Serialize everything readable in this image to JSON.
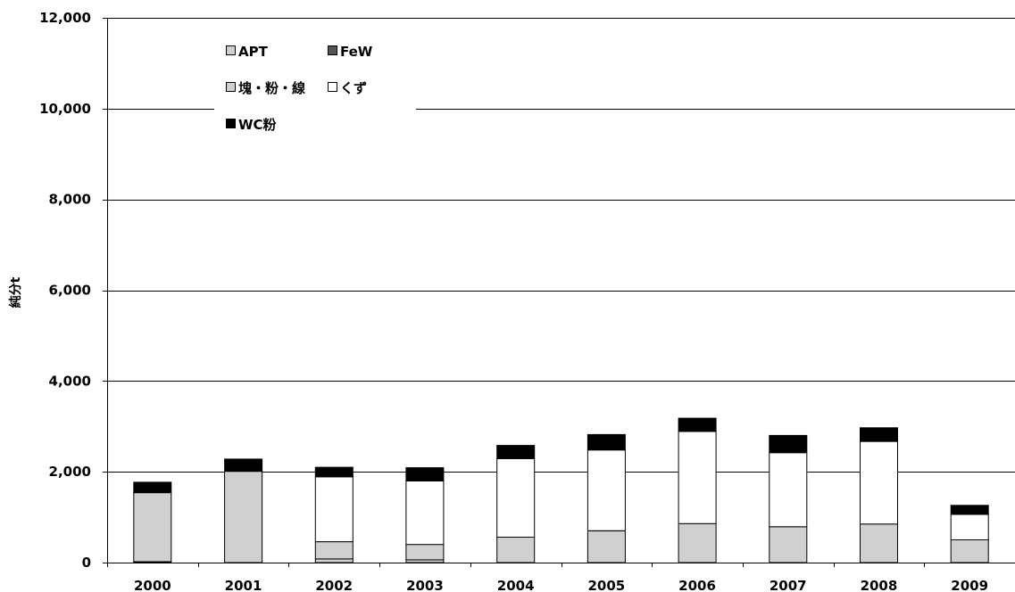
{
  "chart_data": {
    "type": "bar",
    "stacked": true,
    "ylabel": "純分t",
    "ylim": [
      0,
      12000
    ],
    "yticks": [
      0,
      2000,
      4000,
      6000,
      8000,
      10000,
      12000
    ],
    "ytick_labels": [
      "0",
      "2,000",
      "4,000",
      "6,000",
      "8,000",
      "10,000",
      "12,000"
    ],
    "grid": true,
    "legend_position": "top-left",
    "categories": [
      "2000",
      "2001",
      "2002",
      "2003",
      "2004",
      "2005",
      "2006",
      "2007",
      "2008",
      "2009"
    ],
    "series": [
      {
        "name": "APT",
        "color": "#d0d0d0",
        "values": [
          20,
          0,
          80,
          60,
          0,
          0,
          0,
          0,
          0,
          0
        ]
      },
      {
        "name": "FeW",
        "color": "#555555",
        "values": [
          0,
          0,
          0,
          0,
          0,
          0,
          0,
          0,
          0,
          0
        ]
      },
      {
        "name": "塊・粉・線",
        "color": "#d0d0d0",
        "values": [
          1520,
          2010,
          380,
          340,
          560,
          700,
          860,
          790,
          850,
          500
        ]
      },
      {
        "name": "くず",
        "color": "#ffffff",
        "values": [
          0,
          0,
          1430,
          1400,
          1730,
          1780,
          2030,
          1630,
          1820,
          560
        ]
      },
      {
        "name": "WC粉",
        "color": "#000000",
        "values": [
          230,
          270,
          210,
          290,
          290,
          340,
          290,
          380,
          300,
          200
        ]
      }
    ]
  }
}
